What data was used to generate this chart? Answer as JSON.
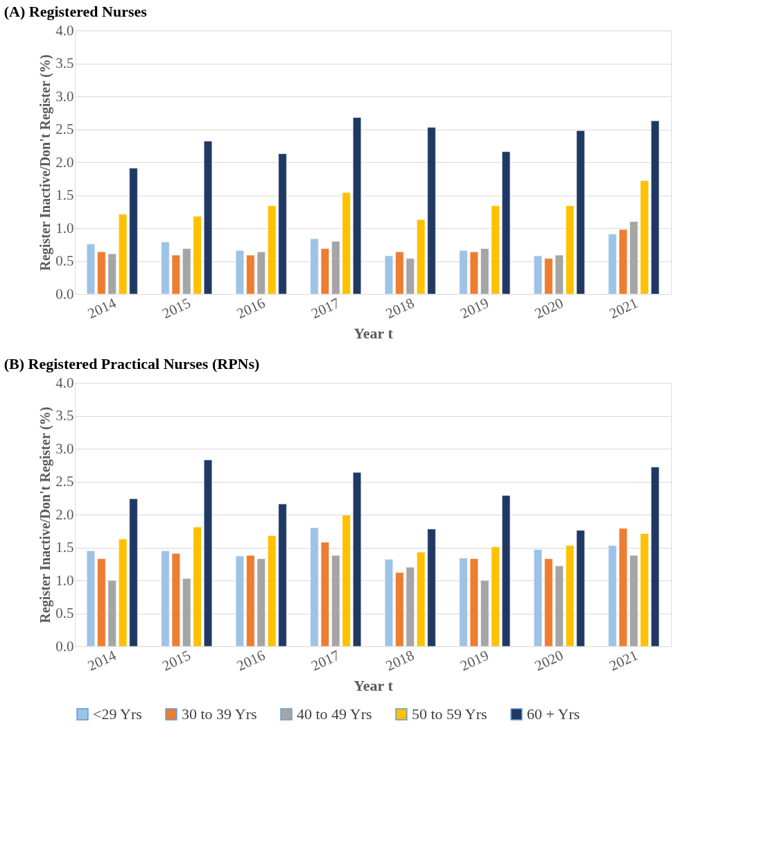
{
  "chart_data": [
    {
      "type": "bar",
      "title": "(A)  Registered Nurses",
      "xlabel": "Year t",
      "ylabel": "Register Inactive/Don't Register (%)",
      "categories": [
        "2014",
        "2015",
        "2016",
        "2017",
        "2018",
        "2019",
        "2020",
        "2021"
      ],
      "series": [
        {
          "name": "<29 Yrs",
          "color": "#9dc3e6",
          "values": [
            0.76,
            0.79,
            0.66,
            0.84,
            0.58,
            0.66,
            0.58,
            0.91
          ]
        },
        {
          "name": "30 to 39 Yrs",
          "color": "#ed7d31",
          "values": [
            0.64,
            0.59,
            0.59,
            0.69,
            0.64,
            0.64,
            0.54,
            0.98
          ]
        },
        {
          "name": "40 to 49 Yrs",
          "color": "#a5a5a5",
          "values": [
            0.61,
            0.69,
            0.64,
            0.8,
            0.54,
            0.69,
            0.59,
            1.1
          ]
        },
        {
          "name": "50 to 59 Yrs",
          "color": "#ffc000",
          "values": [
            1.21,
            1.18,
            1.34,
            1.54,
            1.13,
            1.34,
            1.34,
            1.72
          ]
        },
        {
          "name": "60 + Yrs",
          "color": "#203864",
          "values": [
            1.91,
            2.32,
            2.13,
            2.68,
            2.53,
            2.16,
            2.48,
            2.63
          ]
        }
      ],
      "ylim": [
        0,
        4
      ],
      "yticks": [
        {
          "value": 0,
          "label": "0.0"
        },
        {
          "value": 0.5,
          "label": "0.5"
        },
        {
          "value": 1,
          "label": "1.0"
        },
        {
          "value": 1.5,
          "label": "1.5"
        },
        {
          "value": 2,
          "label": "2.0"
        },
        {
          "value": 2.5,
          "label": "2.5"
        },
        {
          "value": 3,
          "label": "3.0"
        },
        {
          "value": 3.5,
          "label": "3.5"
        },
        {
          "value": 4,
          "label": "4.0"
        }
      ],
      "grid": "y",
      "legend": "bottom"
    },
    {
      "type": "bar",
      "title": "(B)  Registered Practical Nurses (RPNs)",
      "xlabel": "Year t",
      "ylabel": "Register Inactive/Don't Register (%)",
      "categories": [
        "2014",
        "2015",
        "2016",
        "2017",
        "2018",
        "2019",
        "2020",
        "2021"
      ],
      "series": [
        {
          "name": "<29 Yrs",
          "color": "#9dc3e6",
          "values": [
            1.45,
            1.45,
            1.37,
            1.8,
            1.32,
            1.34,
            1.47,
            1.53
          ]
        },
        {
          "name": "30 to 39 Yrs",
          "color": "#ed7d31",
          "values": [
            1.33,
            1.41,
            1.38,
            1.58,
            1.12,
            1.33,
            1.33,
            1.79
          ]
        },
        {
          "name": "40 to 49 Yrs",
          "color": "#a5a5a5",
          "values": [
            1.0,
            1.03,
            1.33,
            1.38,
            1.2,
            1.0,
            1.22,
            1.38
          ]
        },
        {
          "name": "50 to 59 Yrs",
          "color": "#ffc000",
          "values": [
            1.63,
            1.81,
            1.68,
            1.99,
            1.43,
            1.51,
            1.53,
            1.71
          ]
        },
        {
          "name": "60 + Yrs",
          "color": "#203864",
          "values": [
            2.24,
            2.83,
            2.16,
            2.64,
            1.78,
            2.29,
            1.76,
            2.72
          ]
        }
      ],
      "ylim": [
        0,
        4
      ],
      "yticks": [
        {
          "value": 0,
          "label": "0.0"
        },
        {
          "value": 0.5,
          "label": "0.5"
        },
        {
          "value": 1,
          "label": "1.0"
        },
        {
          "value": 1.5,
          "label": "1.5"
        },
        {
          "value": 2,
          "label": "2.0"
        },
        {
          "value": 2.5,
          "label": "2.5"
        },
        {
          "value": 3,
          "label": "3.0"
        },
        {
          "value": 3.5,
          "label": "3.5"
        },
        {
          "value": 4,
          "label": "4.0"
        }
      ],
      "grid": "y",
      "legend": "bottom"
    }
  ]
}
